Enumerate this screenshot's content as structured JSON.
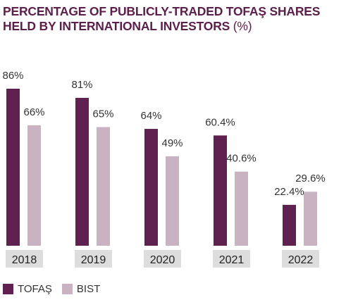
{
  "title": {
    "text": "PERCENTAGE OF PUBLICLY-TRADED TOFAŞ SHARES HELD BY INTERNATIONAL INVESTORS",
    "unit": "(%)"
  },
  "colors": {
    "tofas": "#5e2150",
    "bist": "#c9b3c3",
    "year_label_bg": "#dddddd",
    "value_text": "#333333",
    "title": "#5b1f4a"
  },
  "legend": {
    "tofas_label": "TOFAŞ",
    "bist_label": "BIST"
  },
  "chart_data": {
    "type": "bar",
    "title": "PERCENTAGE OF PUBLICLY-TRADED TOFAŞ SHARES HELD BY INTERNATIONAL INVESTORS (%)",
    "categories": [
      "2018",
      "2019",
      "2020",
      "2021",
      "2022"
    ],
    "series": [
      {
        "name": "TOFAŞ",
        "values": [
          86,
          81,
          64,
          60.4,
          22.4
        ],
        "labels": [
          "86%",
          "81%",
          "64%",
          "60.4%",
          "22.4%"
        ]
      },
      {
        "name": "BIST",
        "values": [
          66,
          65,
          49,
          40.6,
          29.6
        ],
        "labels": [
          "66%",
          "65%",
          "49%",
          "40.6%",
          "29.6%"
        ]
      }
    ],
    "ylim": [
      0,
      86
    ],
    "grid": false,
    "legend_position": "bottom-left"
  }
}
